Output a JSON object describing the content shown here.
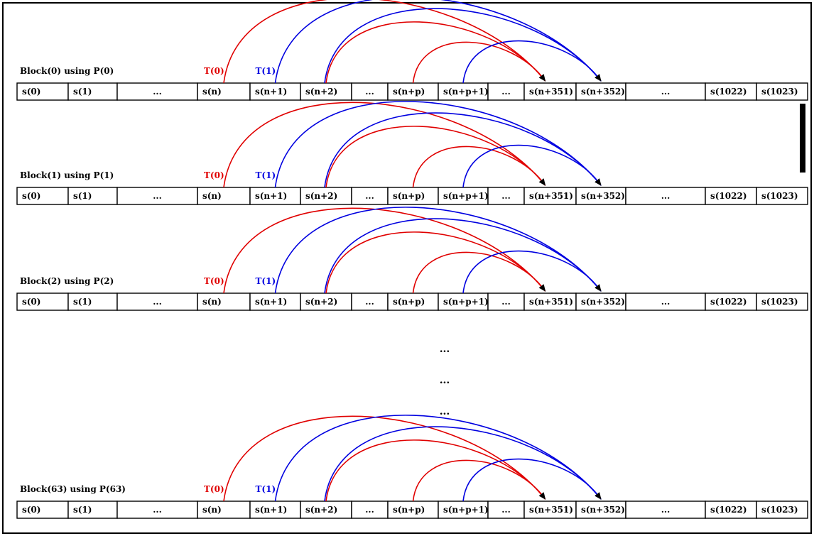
{
  "colors": {
    "thread0": "#e00000",
    "thread1": "#0000e0",
    "cell_border": "#000000",
    "text": "#000000"
  },
  "cells": [
    "s(0)",
    "s(1)",
    "...",
    "s(n)",
    "s(n+1)",
    "s(n+2)",
    "...",
    "s(n+p)",
    "s(n+p+1)",
    "...",
    "s(n+351)",
    "s(n+352)",
    "...",
    "s(1022)",
    "s(1023)"
  ],
  "blocks": [
    {
      "label": "Block(0) using P(0)"
    },
    {
      "label": "Block(1) using P(1)"
    },
    {
      "label": "Block(2) using P(2)"
    },
    {
      "label": "Block(63) using P(63)"
    }
  ],
  "threads": [
    {
      "label": "T(0)",
      "color": "#e00000",
      "source_cells": [
        3,
        5,
        7
      ],
      "target_cell": 10
    },
    {
      "label": "T(1)",
      "color": "#0000e0",
      "source_cells": [
        4,
        5,
        8
      ],
      "target_cell": 11
    }
  ],
  "gap_dots": [
    "...",
    "...",
    "..."
  ]
}
